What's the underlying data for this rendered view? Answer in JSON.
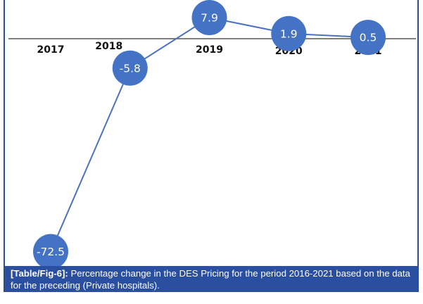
{
  "chart_data": {
    "type": "line",
    "title": "",
    "xlabel": "",
    "ylabel": "",
    "categories": [
      "2017",
      "2018",
      "2019",
      "2020",
      "2021"
    ],
    "series": [
      {
        "name": "Percentage change in DES Pricing (Private hospitals)",
        "values": [
          -72.5,
          -5.8,
          7.9,
          1.9,
          0.5
        ]
      }
    ],
    "data_labels": [
      "-72.5",
      "-5.8",
      "7.9",
      "1.9",
      "0.5"
    ],
    "grid": false,
    "legend": "none",
    "colors": {
      "line": "#4a72c0",
      "marker": "#4472c4",
      "marker_text": "#ffffff",
      "axis": "#555555"
    }
  },
  "caption": {
    "label": "[Table/Fig-6]:",
    "text": " Percentage change in the DES Pricing for the period 2016-2021 based on the data for the preceding (Private hospitals).",
    "background": "#2b4fa0"
  }
}
